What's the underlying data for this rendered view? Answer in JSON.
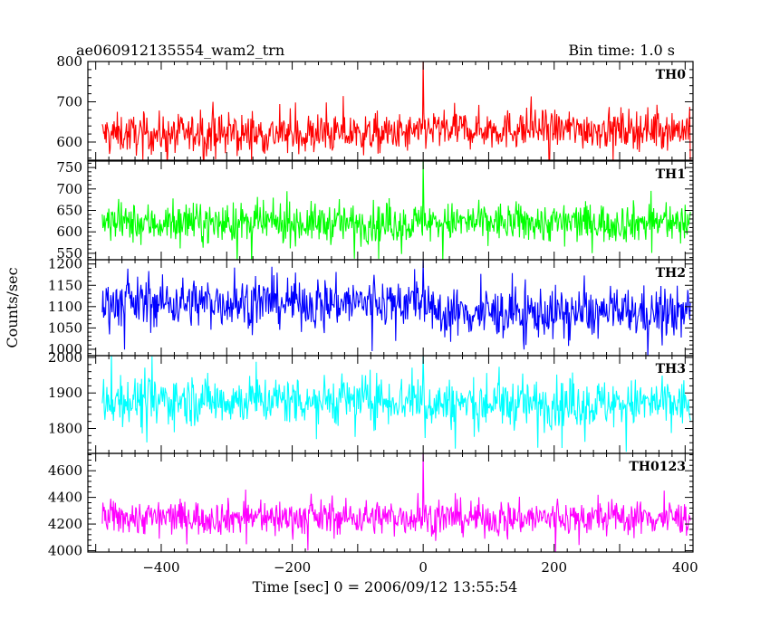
{
  "chart_data": {
    "type": "line",
    "title_left": "ae060912135554_wam2_trn",
    "title_right": "Bin time: 1.0 s",
    "xlabel": "Time [sec] 0 = 2006/09/12 13:55:54",
    "ylabel": "Counts/sec",
    "xlim": [
      -512,
      412
    ],
    "x_ticks": [
      -400,
      -200,
      0,
      200,
      400
    ],
    "x_tick_labels": [
      "−400",
      "−200",
      "0",
      "200",
      "400"
    ],
    "grid": false,
    "bin_time_s": 1.0,
    "panels": [
      {
        "label": "TH0",
        "color": "#ff0000",
        "ylim": [
          555,
          800
        ],
        "y_ticks": [
          600,
          700,
          800
        ],
        "baseline_before": 620,
        "baseline_after": 632,
        "noise_amplitude": 32,
        "peak": {
          "x": 0,
          "y": 805
        }
      },
      {
        "label": "TH1",
        "color": "#00ff00",
        "ylim": [
          535,
          765
        ],
        "y_ticks": [
          550,
          600,
          650,
          700,
          750
        ],
        "baseline_before": 620,
        "baseline_after": 622,
        "noise_amplitude": 30,
        "peak": {
          "x": 0,
          "y": 765
        }
      },
      {
        "label": "TH2",
        "color": "#0000ff",
        "ylim": [
          985,
          1210
        ],
        "y_ticks": [
          1000,
          1050,
          1100,
          1150,
          1200
        ],
        "baseline_before": 1110,
        "baseline_after": 1085,
        "noise_amplitude": 38,
        "peak": {
          "x": 0,
          "y": 1210
        }
      },
      {
        "label": "TH3",
        "color": "#00ffff",
        "ylim": [
          1730,
          2005
        ],
        "y_ticks": [
          1800,
          1900,
          2000
        ],
        "baseline_before": 1880,
        "baseline_after": 1870,
        "noise_amplitude": 45,
        "peak": {
          "x": 0,
          "y": 2005
        }
      },
      {
        "label": "TH0123",
        "color": "#ff00ff",
        "ylim": [
          3990,
          4730
        ],
        "y_ticks": [
          4000,
          4200,
          4400,
          4600
        ],
        "baseline_before": 4250,
        "baseline_after": 4245,
        "noise_amplitude": 85,
        "peak": {
          "x": 0,
          "y": 4730
        }
      }
    ]
  }
}
